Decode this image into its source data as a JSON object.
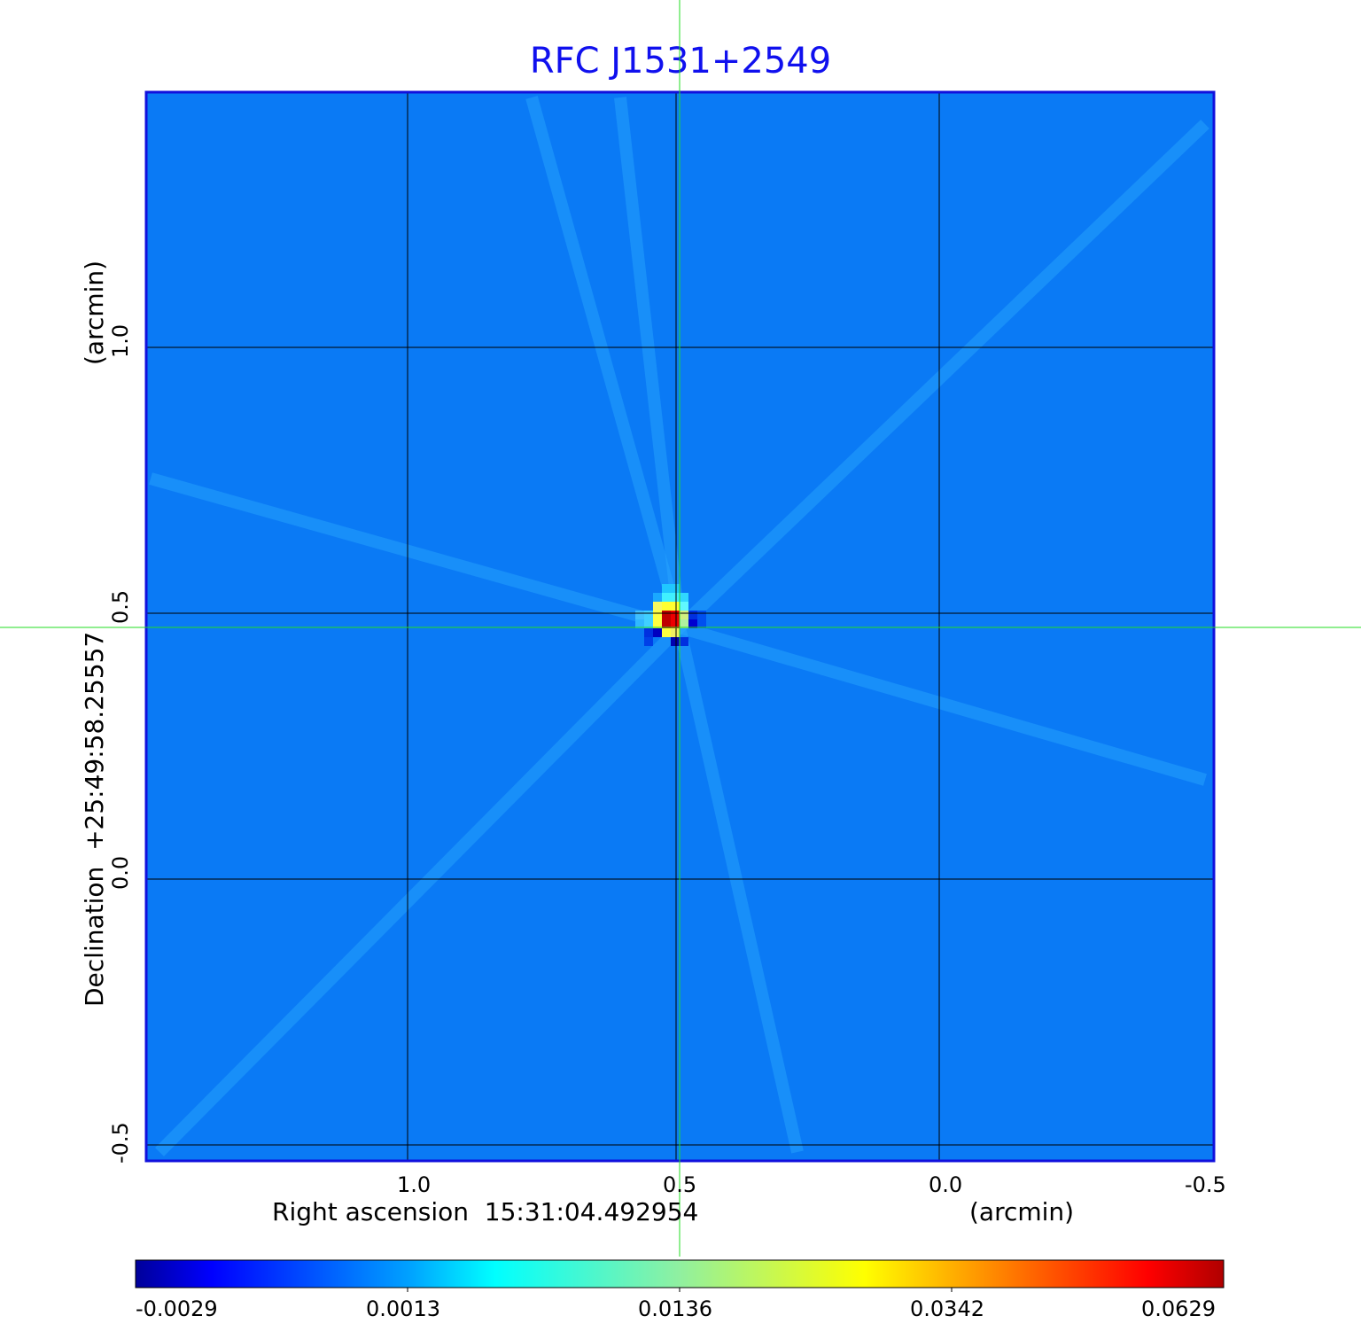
{
  "chart_data": {
    "type": "heatmap",
    "title": "RFC J1531+2549",
    "xlabel": "Right ascension  15:31:04.492954",
    "xunit": "(arcmin)",
    "ylabel": "Declination  +25:49:58.25557",
    "yunit": "(arcmin)",
    "x_ticks": [
      "1.0",
      "0.5",
      "0.0",
      "-0.5"
    ],
    "y_ticks": [
      "1.0",
      "0.5",
      "0.0",
      "-0.5"
    ],
    "xlim": [
      1.5,
      -0.5
    ],
    "ylim": [
      -0.52,
      1.48
    ],
    "grid": true,
    "crosshair": {
      "x": 0.5,
      "y": 0.47,
      "color": "#00dd00"
    },
    "colormap": "jet",
    "colorbar": {
      "orientation": "horizontal",
      "placement": "bottom",
      "tick_labels": [
        "-0.0029",
        "0.0013",
        "0.0136",
        "0.0342",
        "0.0629"
      ],
      "range": [
        -0.0029,
        0.0629
      ]
    },
    "peak": {
      "x": 0.5,
      "y": 0.47,
      "value": 0.0629
    },
    "background_value": 0.0
  },
  "colors": {
    "title": "#1010ee",
    "frame": "#1010dd",
    "background": "#0a7af5"
  }
}
